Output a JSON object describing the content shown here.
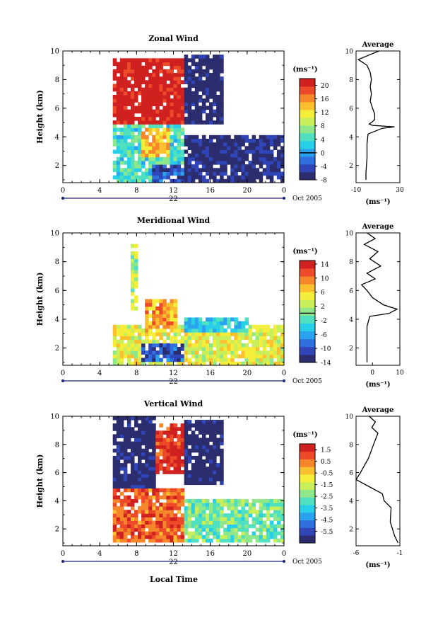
{
  "figure": {
    "date_label": "Oct 2005",
    "x_title": "Local Time",
    "y_title": "Height (km)",
    "unit_label": "(ms⁻¹)",
    "profile_title": "Average",
    "profile_xlabel": "(ms⁻¹)"
  },
  "colormap": [
    "#2b2d6e",
    "#2f45b8",
    "#2f6fe0",
    "#2aa3ee",
    "#27cfe8",
    "#4fe0c0",
    "#8ee88a",
    "#c8ef5a",
    "#f4ee3a",
    "#fbc02d",
    "#f5862a",
    "#ec4a28",
    "#d0201f"
  ],
  "chart_data": [
    {
      "type": "heatmap",
      "title": "Zonal Wind",
      "xlabel": "",
      "ylabel": "Height (km)",
      "xlim": [
        0,
        24
      ],
      "ylim": [
        0.8,
        10
      ],
      "x_ticks": [
        "0",
        "4",
        "8",
        "12",
        "16",
        "20",
        "0"
      ],
      "y_ticks": [
        "2",
        "4",
        "6",
        "8",
        "10"
      ],
      "day_label": "22",
      "colorbar": {
        "range": [
          -8,
          22
        ],
        "ticks": [
          "-8",
          "-4",
          "0",
          "4",
          "8",
          "12",
          "16",
          "20"
        ],
        "contour": 0
      },
      "profile": {
        "xlim": [
          -10,
          30
        ],
        "x_ticks": [
          "-10",
          "30"
        ],
        "y_ticks": [
          "2",
          "4",
          "6",
          "8",
          "10"
        ],
        "x": [
          11,
          -8,
          0,
          3,
          4,
          3,
          4,
          3,
          5,
          7,
          7,
          4,
          2,
          5,
          25,
          14,
          1,
          0,
          0,
          -1,
          -1
        ],
        "y": [
          10,
          9.4,
          9.0,
          8.5,
          8.0,
          7.5,
          7.0,
          6.5,
          6.0,
          5.6,
          5.2,
          5.0,
          4.9,
          4.8,
          4.7,
          4.6,
          4.2,
          3.5,
          2.5,
          1.5,
          1.0
        ]
      },
      "regions": [
        {
          "x": [
            5.5,
            13
          ],
          "y": [
            4.8,
            9.6
          ],
          "value": 22
        },
        {
          "x": [
            13,
            17.5
          ],
          "y": [
            5.0,
            9.7
          ],
          "value": -8
        },
        {
          "x": [
            5.5,
            13
          ],
          "y": [
            0.8,
            4.8
          ],
          "value": 4
        },
        {
          "x": [
            8.5,
            11.5
          ],
          "y": [
            2.5,
            4.6
          ],
          "value": 14
        },
        {
          "x": [
            13,
            24
          ],
          "y": [
            0.9,
            4.2
          ],
          "value": -7
        },
        {
          "x": [
            9.5,
            13
          ],
          "y": [
            0.8,
            2.0
          ],
          "value": -4
        }
      ]
    },
    {
      "type": "heatmap",
      "title": "Meridional Wind",
      "xlabel": "",
      "ylabel": "Height (km)",
      "xlim": [
        0,
        24
      ],
      "ylim": [
        0.8,
        10
      ],
      "x_ticks": [
        "0",
        "4",
        "8",
        "12",
        "16",
        "20",
        "0"
      ],
      "y_ticks": [
        "2",
        "4",
        "6",
        "8",
        "10"
      ],
      "day_label": "22",
      "colorbar": {
        "range": [
          -14,
          15
        ],
        "ticks": [
          "-14",
          "-10",
          "-6",
          "-2",
          "2",
          "6",
          "10",
          "14"
        ],
        "contour": 0
      },
      "profile": {
        "xlim": [
          -6,
          10
        ],
        "x_ticks": [
          "0",
          "10"
        ],
        "y_ticks": [
          "2",
          "4",
          "6",
          "8",
          "10"
        ],
        "x": [
          -2,
          1,
          -3,
          2,
          -1,
          3,
          -2,
          1,
          -4,
          -2,
          0,
          4,
          9,
          6,
          -1,
          -2,
          -2,
          -2
        ],
        "y": [
          10,
          9.6,
          9.2,
          8.7,
          8.2,
          7.7,
          7.2,
          6.8,
          6.4,
          6.0,
          5.5,
          5.0,
          4.7,
          4.4,
          4.2,
          3.5,
          2.0,
          1.0
        ]
      },
      "regions": [
        {
          "x": [
            7.5,
            8.3
          ],
          "y": [
            4.6,
            9.3
          ],
          "value": 2
        },
        {
          "x": [
            5.5,
            24
          ],
          "y": [
            0.9,
            3.5
          ],
          "value": 4
        },
        {
          "x": [
            9.0,
            12.5
          ],
          "y": [
            3.0,
            5.4
          ],
          "value": 8
        },
        {
          "x": [
            13,
            20
          ],
          "y": [
            3.0,
            4.2
          ],
          "value": -4
        },
        {
          "x": [
            8.5,
            13
          ],
          "y": [
            1.0,
            2.4
          ],
          "value": -10
        }
      ]
    },
    {
      "type": "heatmap",
      "title": "Vertical Wind",
      "xlabel": "Local Time",
      "ylabel": "Height (km)",
      "xlim": [
        0,
        24
      ],
      "ylim": [
        0.8,
        10
      ],
      "x_ticks": [
        "0",
        "4",
        "8",
        "12",
        "16",
        "20",
        "0"
      ],
      "y_ticks": [
        "2",
        "4",
        "6",
        "8",
        "10"
      ],
      "day_label": "22",
      "colorbar": {
        "range": [
          -6.5,
          2
        ],
        "ticks": [
          "-5.5",
          "-4.5",
          "-3.5",
          "-2.5",
          "-1.5",
          "-0.5",
          "0.5",
          "1.5"
        ],
        "contour": null
      },
      "profile": {
        "xlim": [
          -6,
          -1
        ],
        "x_ticks": [
          "-6",
          "-1"
        ],
        "y_ticks": [
          "2",
          "4",
          "6",
          "8",
          "10"
        ],
        "x": [
          -4.5,
          -3.8,
          -4.2,
          -3.5,
          -4.0,
          -4.6,
          -5.5,
          -6,
          -4.5,
          -3.0,
          -2.8,
          -2.0,
          -2.1,
          -1.6,
          -1.2
        ],
        "y": [
          10,
          9.6,
          9.2,
          8.8,
          8.0,
          7.0,
          6.0,
          5.5,
          5.0,
          4.5,
          4.0,
          3.5,
          2.5,
          1.5,
          1.0
        ]
      },
      "regions": [
        {
          "x": [
            5.5,
            10
          ],
          "y": [
            5.0,
            10
          ],
          "value": -6.5
        },
        {
          "x": [
            10,
            13
          ],
          "y": [
            6.0,
            9.5
          ],
          "value": 1.5
        },
        {
          "x": [
            13,
            17.5
          ],
          "y": [
            5.2,
            9.7
          ],
          "value": -6.5
        },
        {
          "x": [
            5.5,
            13
          ],
          "y": [
            1.0,
            4.8
          ],
          "value": 0.8
        },
        {
          "x": [
            13,
            24
          ],
          "y": [
            1.0,
            4.0
          ],
          "value": -2.5
        }
      ]
    }
  ]
}
